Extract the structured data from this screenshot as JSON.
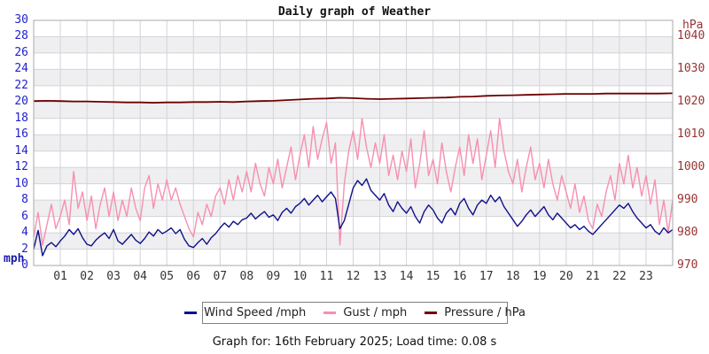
{
  "title": "Daily graph of Weather",
  "footer": "Graph for: 16th February 2025; Load time: 0.08 s",
  "axes": {
    "left": {
      "unit": "mph",
      "color": "#2222cc",
      "ticks": [
        "0",
        "2",
        "4",
        "6",
        "8",
        "10",
        "12",
        "14",
        "16",
        "18",
        "20",
        "22",
        "24",
        "26",
        "28",
        "30"
      ]
    },
    "right": {
      "unit": "hPa",
      "color": "#993333",
      "ticks": [
        "970",
        "980",
        "990",
        "1000",
        "1010",
        "1020",
        "1030",
        "1040"
      ]
    },
    "x": {
      "ticks": [
        "01",
        "02",
        "03",
        "04",
        "05",
        "06",
        "07",
        "08",
        "09",
        "10",
        "11",
        "12",
        "13",
        "14",
        "15",
        "16",
        "17",
        "18",
        "19",
        "20",
        "21",
        "22",
        "23"
      ]
    }
  },
  "chart_data": {
    "type": "line",
    "title": "Daily graph of Weather",
    "x_unit": "hour of day",
    "x_range": [
      0,
      24
    ],
    "grid": true,
    "legend_position": "bottom",
    "band_color": "#efeff1",
    "grid_color": "#d4d4d8",
    "border_color": "#a8a8a8",
    "left_axis": {
      "label": "mph",
      "min": 0,
      "max": 30,
      "tick_step": 2
    },
    "right_axis": {
      "label": "hPa",
      "min": 970,
      "max": 1045,
      "tick_step": 10
    },
    "series": [
      {
        "name": "Wind Speed /mph",
        "color": "#10108a",
        "axis": "left",
        "step_minutes": 10,
        "values": [
          2.0,
          4.3,
          1.2,
          2.4,
          2.8,
          2.3,
          3.0,
          3.6,
          4.4,
          3.8,
          4.5,
          3.4,
          2.6,
          2.4,
          3.1,
          3.6,
          4.0,
          3.3,
          4.4,
          3.0,
          2.6,
          3.2,
          3.8,
          3.1,
          2.7,
          3.3,
          4.1,
          3.6,
          4.4,
          3.9,
          4.2,
          4.6,
          3.9,
          4.4,
          3.2,
          2.4,
          2.2,
          2.8,
          3.3,
          2.6,
          3.4,
          3.9,
          4.6,
          5.2,
          4.7,
          5.4,
          5.0,
          5.6,
          5.8,
          6.4,
          5.7,
          6.2,
          6.6,
          5.9,
          6.2,
          5.5,
          6.5,
          7.0,
          6.4,
          7.2,
          7.6,
          8.2,
          7.4,
          8.0,
          8.6,
          7.8,
          8.4,
          9.0,
          8.2,
          4.5,
          5.5,
          7.5,
          9.5,
          10.4,
          9.8,
          10.6,
          9.2,
          8.6,
          8.0,
          8.8,
          7.4,
          6.6,
          7.8,
          7.0,
          6.4,
          7.2,
          6.0,
          5.2,
          6.6,
          7.4,
          6.8,
          5.8,
          5.2,
          6.4,
          7.0,
          6.2,
          7.6,
          8.2,
          7.0,
          6.2,
          7.4,
          8.0,
          7.6,
          8.6,
          7.8,
          8.4,
          7.2,
          6.4,
          5.6,
          4.8,
          5.4,
          6.2,
          6.8,
          6.0,
          6.6,
          7.2,
          6.2,
          5.6,
          6.4,
          5.8,
          5.2,
          4.6,
          5.0,
          4.4,
          4.8,
          4.2,
          3.8,
          4.4,
          5.0,
          5.6,
          6.2,
          6.8,
          7.4,
          7.0,
          7.6,
          6.6,
          5.8,
          5.2,
          4.6,
          5.0,
          4.2,
          3.8,
          4.6,
          4.0,
          4.4
        ]
      },
      {
        "name": "Gust / mph",
        "color": "#f78fb0",
        "axis": "left",
        "step_minutes": 10,
        "values": [
          3.5,
          6.5,
          2.5,
          5.0,
          7.5,
          4.5,
          6.0,
          8.0,
          5.0,
          11.5,
          7.0,
          9.0,
          5.5,
          8.5,
          4.5,
          7.5,
          9.5,
          6.0,
          9.0,
          5.5,
          8.0,
          6.0,
          9.5,
          7.0,
          5.5,
          9.5,
          11.0,
          7.0,
          10.0,
          8.0,
          10.5,
          8.0,
          9.5,
          7.5,
          6.0,
          4.5,
          3.5,
          6.5,
          5.0,
          7.5,
          6.0,
          8.5,
          9.5,
          7.5,
          10.5,
          8.0,
          11.0,
          9.0,
          11.5,
          9.0,
          12.5,
          10.0,
          8.5,
          12.0,
          10.0,
          13.0,
          9.5,
          12.0,
          14.5,
          10.5,
          13.5,
          16.0,
          12.0,
          17.0,
          13.0,
          15.5,
          17.5,
          12.5,
          15.0,
          2.5,
          10.0,
          14.0,
          16.5,
          13.0,
          18.0,
          14.5,
          12.0,
          15.0,
          12.5,
          16.0,
          11.0,
          13.5,
          10.5,
          14.0,
          11.5,
          15.5,
          9.5,
          12.5,
          16.5,
          11.0,
          13.0,
          10.0,
          15.0,
          11.5,
          9.0,
          12.0,
          14.5,
          11.0,
          16.0,
          12.5,
          15.5,
          10.5,
          13.5,
          16.5,
          12.0,
          18.0,
          14.0,
          11.5,
          10.0,
          13.0,
          9.0,
          12.0,
          14.5,
          10.5,
          12.5,
          9.5,
          13.0,
          10.0,
          8.0,
          11.0,
          9.0,
          7.0,
          10.0,
          6.5,
          8.5,
          5.5,
          4.5,
          7.5,
          6.0,
          9.0,
          11.0,
          8.0,
          12.5,
          10.0,
          13.5,
          9.5,
          12.0,
          8.5,
          11.0,
          7.5,
          10.5,
          5.0,
          8.0,
          4.0,
          8.0
        ]
      },
      {
        "name": "Pressure / hPa",
        "color": "#6e0000",
        "axis": "right",
        "step_minutes": 30,
        "values": [
          1020.3,
          1020.4,
          1020.3,
          1020.2,
          1020.2,
          1020.1,
          1020.0,
          1019.9,
          1019.9,
          1019.8,
          1019.9,
          1019.9,
          1020.0,
          1020.0,
          1020.1,
          1020.0,
          1020.2,
          1020.3,
          1020.4,
          1020.6,
          1020.8,
          1021.0,
          1021.1,
          1021.3,
          1021.2,
          1021.0,
          1020.9,
          1021.0,
          1021.1,
          1021.2,
          1021.3,
          1021.4,
          1021.6,
          1021.7,
          1021.9,
          1022.0,
          1022.1,
          1022.2,
          1022.3,
          1022.4,
          1022.5,
          1022.5,
          1022.5,
          1022.6,
          1022.6,
          1022.6,
          1022.6,
          1022.6,
          1022.7
        ]
      }
    ]
  }
}
